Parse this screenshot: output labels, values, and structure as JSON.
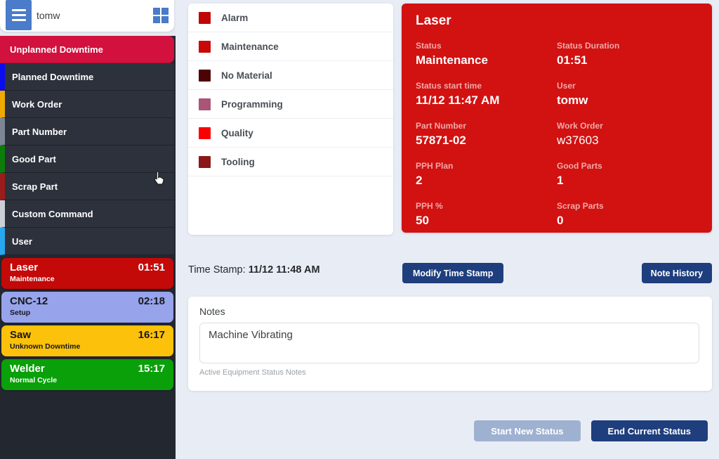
{
  "header": {
    "username": "tomw",
    "menu_icon": "hamburger-icon",
    "apps_icon": "grid-icon"
  },
  "colors": {
    "selected_command": "#d2113e",
    "sidebar_dark": "#23272f",
    "header_button_blue": "#4a7cc9",
    "grid_icon_blue": "#4a7bc8",
    "status_panel_red": "#d21111",
    "primary_button_navy": "#1e3e7d",
    "disabled_button": "#9fb1d1",
    "background": "#e8ecf4"
  },
  "sidebar": {
    "commands": [
      {
        "label": "Unplanned Downtime",
        "accent": "#d2113e",
        "selected": true
      },
      {
        "label": "Planned Downtime",
        "accent": "#0b0bef",
        "selected": false
      },
      {
        "label": "Work Order",
        "accent": "#eea902",
        "selected": false
      },
      {
        "label": "Part Number",
        "accent": "#7d8695",
        "selected": false
      },
      {
        "label": "Good Part",
        "accent": "#0a7d0a",
        "selected": false
      },
      {
        "label": "Scrap Part",
        "accent": "#9c1b1b",
        "selected": false
      },
      {
        "label": "Custom Command",
        "accent": "#ccd0d6",
        "selected": false
      },
      {
        "label": "User",
        "accent": "#27a7ee",
        "selected": false
      }
    ],
    "machines": [
      {
        "name": "Laser",
        "status": "Maintenance",
        "time": "01:51",
        "bg": "#c40909",
        "fg": "#ffffff"
      },
      {
        "name": "CNC-12",
        "status": "Setup",
        "time": "02:18",
        "bg": "#97a3ea",
        "fg": "#15171c"
      },
      {
        "name": "Saw",
        "status": "Unknown Downtime",
        "time": "16:17",
        "bg": "#fcc10a",
        "fg": "#15171c"
      },
      {
        "name": "Welder",
        "status": "Normal Cycle",
        "time": "15:17",
        "bg": "#0aa00a",
        "fg": "#ffffff"
      }
    ]
  },
  "reasons": [
    {
      "label": "Alarm",
      "color": "#c00505"
    },
    {
      "label": "Maintenance",
      "color": "#c90808"
    },
    {
      "label": "No Material",
      "color": "#4d0303"
    },
    {
      "label": "Programming",
      "color": "#a85577"
    },
    {
      "label": "Quality",
      "color": "#fb0000"
    },
    {
      "label": "Tooling",
      "color": "#8c1717"
    }
  ],
  "status_panel": {
    "title": "Laser",
    "fields": [
      {
        "label": "Status",
        "value": "Maintenance",
        "bold": true
      },
      {
        "label": "Status Duration",
        "value": "01:51",
        "bold": true
      },
      {
        "label": "Status start time",
        "value": "11/12 11:47 AM",
        "bold": true
      },
      {
        "label": "User",
        "value": "tomw",
        "bold": true
      },
      {
        "label": "Part Number",
        "value": "57871-02",
        "bold": true
      },
      {
        "label": "Work Order",
        "value": "w37603",
        "bold": false
      },
      {
        "label": "PPH Plan",
        "value": "2",
        "bold": true
      },
      {
        "label": "Good Parts",
        "value": "1",
        "bold": true
      },
      {
        "label": "PPH %",
        "value": "50",
        "bold": true
      },
      {
        "label": "Scrap Parts",
        "value": "0",
        "bold": true
      }
    ]
  },
  "timestamp": {
    "label": "Time Stamp:",
    "value": "11/12 11:48 AM",
    "modify_button": "Modify Time Stamp",
    "history_button": "Note History"
  },
  "notes": {
    "label": "Notes",
    "value": "Machine Vibrating",
    "helper": "Active Equipment Status Notes"
  },
  "actions": {
    "start": "Start New Status",
    "end": "End Current Status"
  }
}
